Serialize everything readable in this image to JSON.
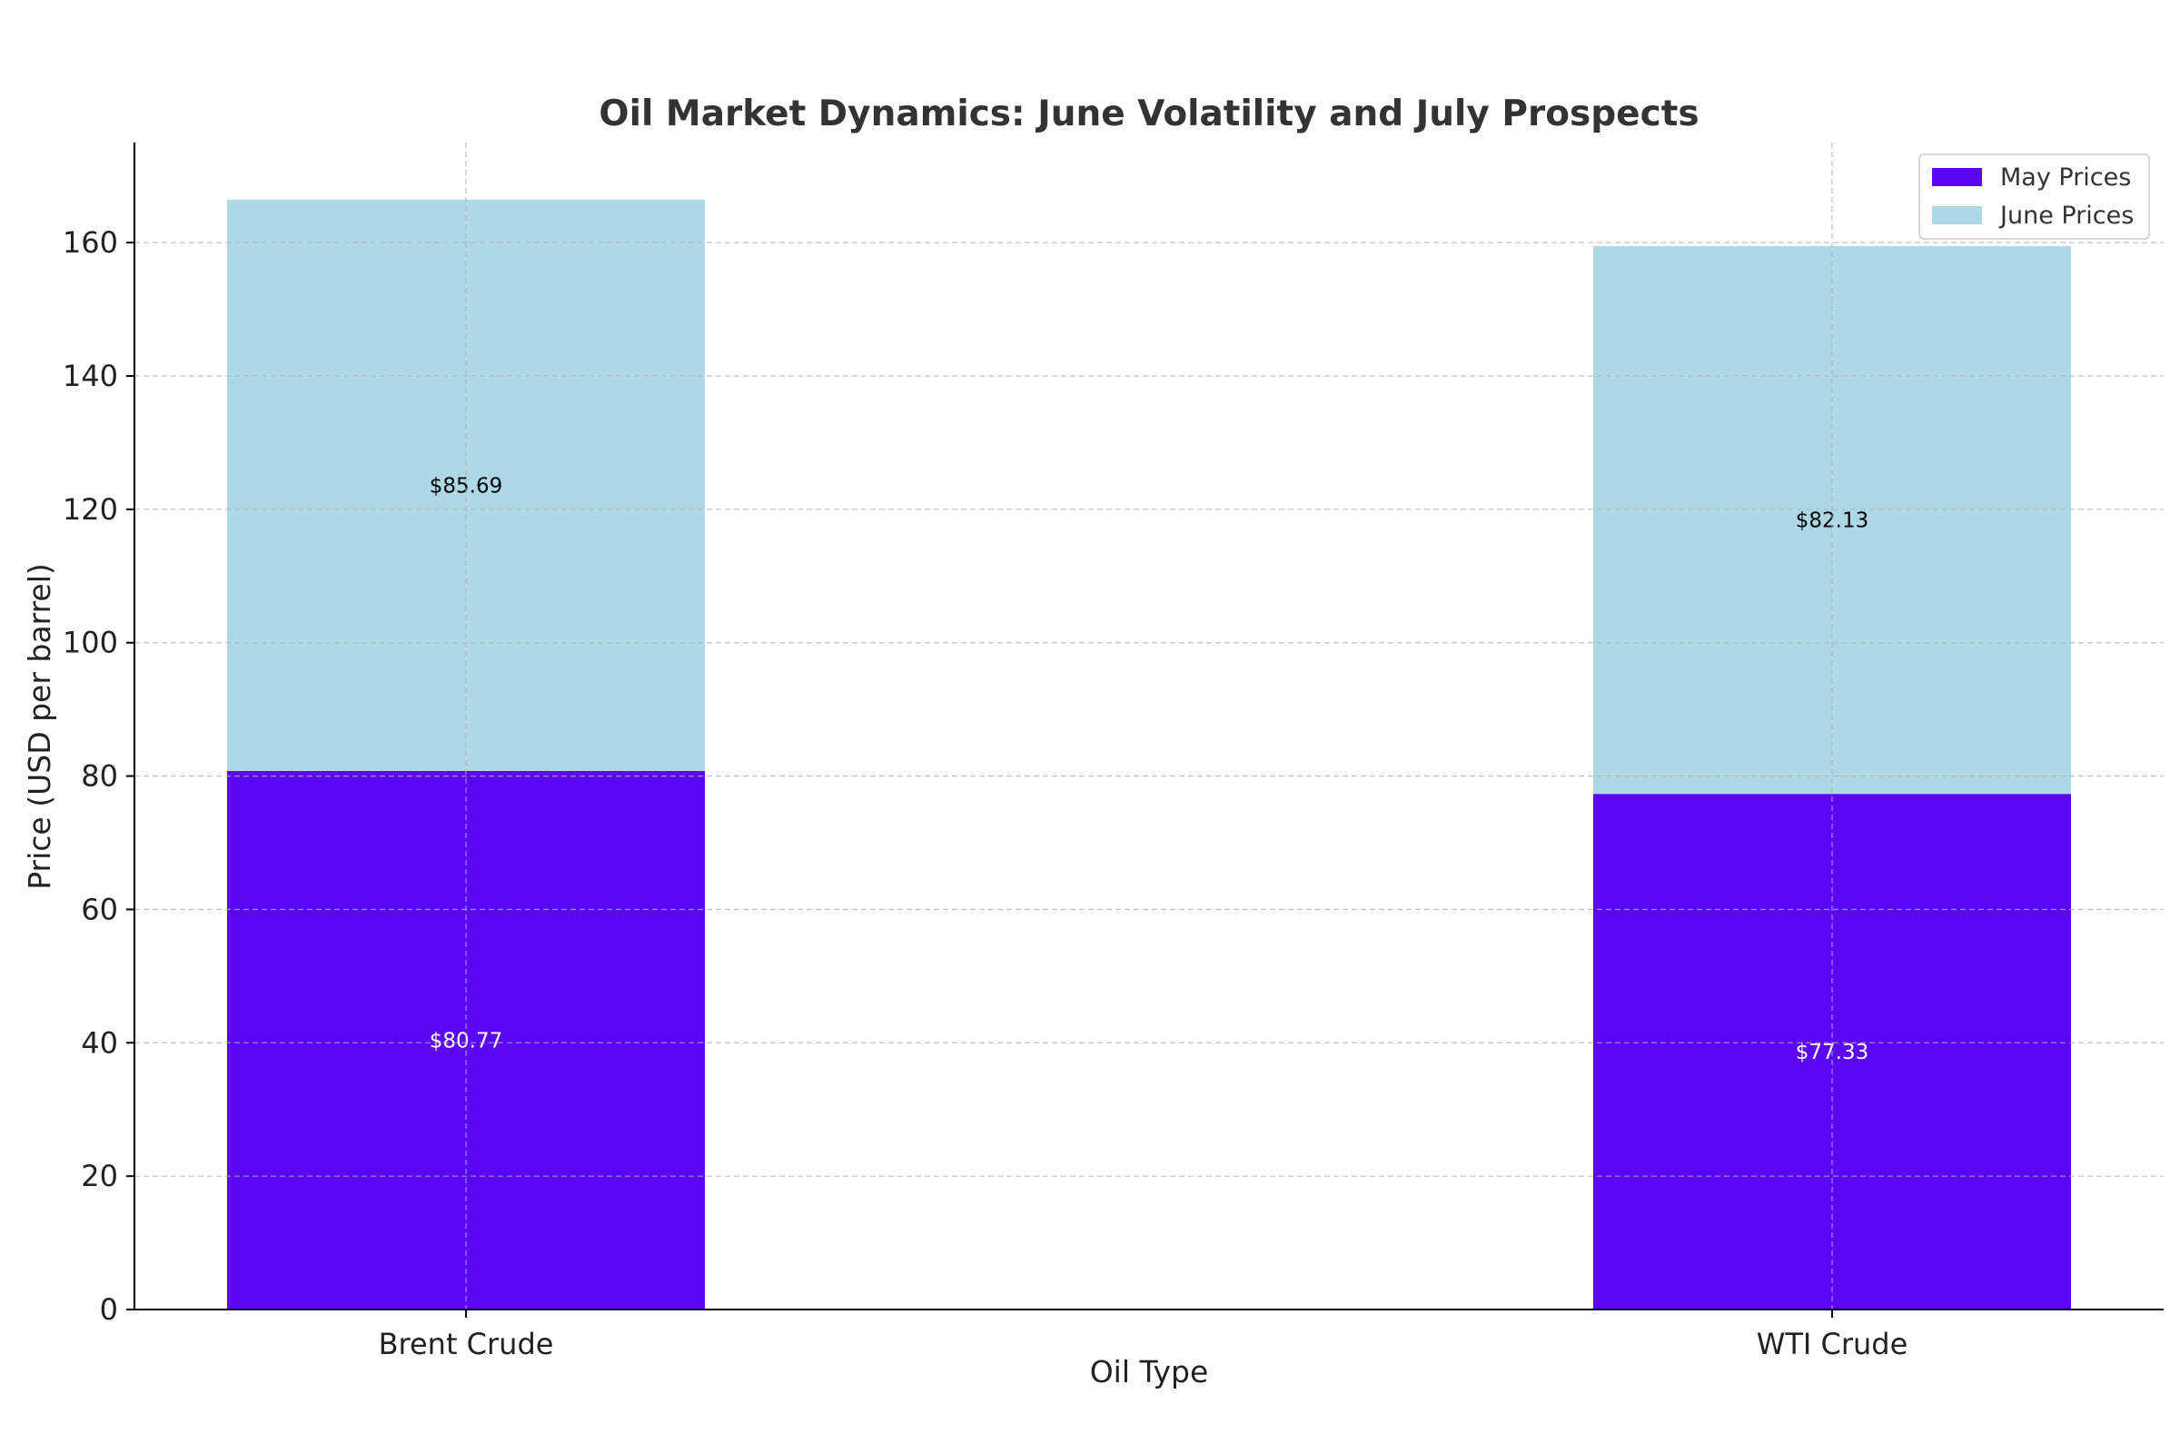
{
  "chart_data": {
    "type": "bar",
    "stacked": true,
    "title": "Oil Market Dynamics: June Volatility and July Prospects",
    "xlabel": "Oil Type",
    "ylabel": "Price (USD per barrel)",
    "categories": [
      "Brent Crude",
      "WTI Crude"
    ],
    "series": [
      {
        "name": "May Prices",
        "values": [
          80.77,
          77.33
        ],
        "labels": [
          "$80.77",
          "$77.33"
        ],
        "color": "#5b06f5",
        "label_color": "#ffffff"
      },
      {
        "name": "June Prices",
        "values": [
          85.69,
          82.13
        ],
        "labels": [
          "$85.69",
          "$82.13"
        ],
        "color": "#add8e6",
        "label_color": "#000000"
      }
    ],
    "ylim": [
      0,
      175
    ],
    "yticks": [
      0,
      20,
      40,
      60,
      80,
      100,
      120,
      140,
      160
    ],
    "grid": true,
    "legend_position": "top-right"
  }
}
